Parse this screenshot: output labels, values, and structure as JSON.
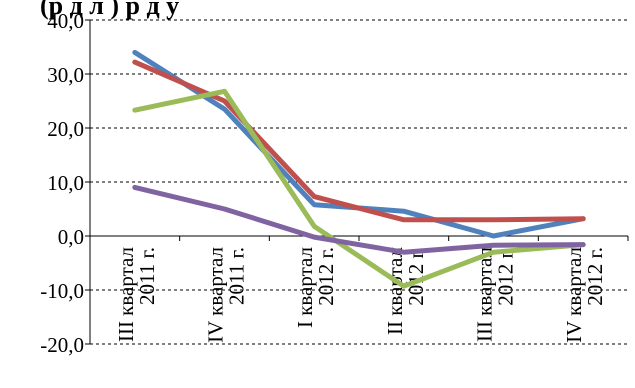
{
  "chart_data": {
    "type": "line",
    "title": "(р д л ) р д у",
    "categories": [
      [
        "III квартал",
        "2011 г."
      ],
      [
        "IV квартал",
        "2011 г."
      ],
      [
        "I квартал",
        "2012 г."
      ],
      [
        "II квартал",
        "2012 г."
      ],
      [
        "III квартал",
        "2012 г."
      ],
      [
        "IV квартал",
        "2012 г."
      ]
    ],
    "ylim": [
      -20,
      40
    ],
    "yticks": [
      "40,0",
      "30,0",
      "20,0",
      "10,0",
      "0,0",
      "-10,0",
      "-20,0"
    ],
    "ytick_values": [
      40,
      30,
      20,
      10,
      0,
      -10,
      -20
    ],
    "grid": true,
    "series": [
      {
        "color": "#4F81BD",
        "values": [
          34.0,
          23.5,
          5.8,
          4.6,
          0.0,
          3.2
        ]
      },
      {
        "color": "#C0504D",
        "values": [
          32.2,
          25.0,
          7.3,
          3.0,
          3.0,
          3.2
        ]
      },
      {
        "color": "#9BBB59",
        "values": [
          23.3,
          26.8,
          1.8,
          -9.3,
          -3.0,
          -1.6
        ]
      },
      {
        "color": "#8064A2",
        "values": [
          9.0,
          5.0,
          -0.2,
          -3.0,
          -1.7,
          -1.6
        ]
      }
    ]
  }
}
